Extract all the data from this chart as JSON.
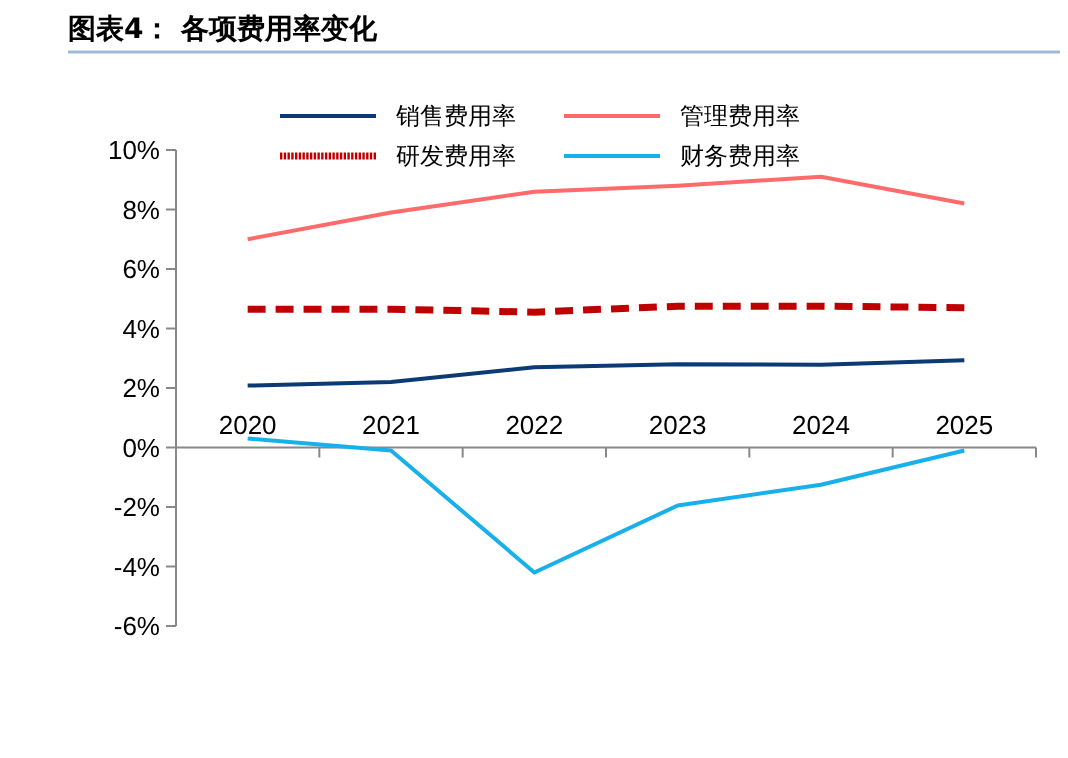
{
  "chart_data": {
    "type": "line",
    "title": "图表4：  各项费用率变化",
    "categories": [
      "2020",
      "2021",
      "2022",
      "2023",
      "2024",
      "2025"
    ],
    "series": [
      {
        "name": "销售费用率",
        "color": "#0b3a75",
        "values": [
          2.08,
          2.2,
          2.7,
          2.8,
          2.78,
          2.93
        ],
        "line_style": "solid"
      },
      {
        "name": "管理费用率",
        "color": "#ff6b6b",
        "values": [
          7.0,
          7.9,
          8.6,
          8.8,
          9.1,
          8.2
        ],
        "line_style": "solid"
      },
      {
        "name": "研发费用率",
        "color": "#c00000",
        "values": [
          4.65,
          4.65,
          4.55,
          4.75,
          4.75,
          4.7
        ],
        "line_style": "dashed"
      },
      {
        "name": "财务费用率",
        "color": "#17b0ea",
        "values": [
          0.3,
          -0.1,
          -4.2,
          -1.95,
          -1.25,
          -0.1
        ],
        "line_style": "solid"
      }
    ],
    "ylim": [
      -6,
      10
    ],
    "yticks": [
      {
        "value": -6,
        "label": "-6%"
      },
      {
        "value": -4,
        "label": "-4%"
      },
      {
        "value": -2,
        "label": "-2%"
      },
      {
        "value": 0,
        "label": "0%"
      },
      {
        "value": 2,
        "label": "2%"
      },
      {
        "value": 4,
        "label": "4%"
      },
      {
        "value": 6,
        "label": "6%"
      },
      {
        "value": 8,
        "label": "8%"
      },
      {
        "value": 10,
        "label": "10%"
      }
    ],
    "grid": false,
    "legend": "top",
    "marker": "none"
  }
}
